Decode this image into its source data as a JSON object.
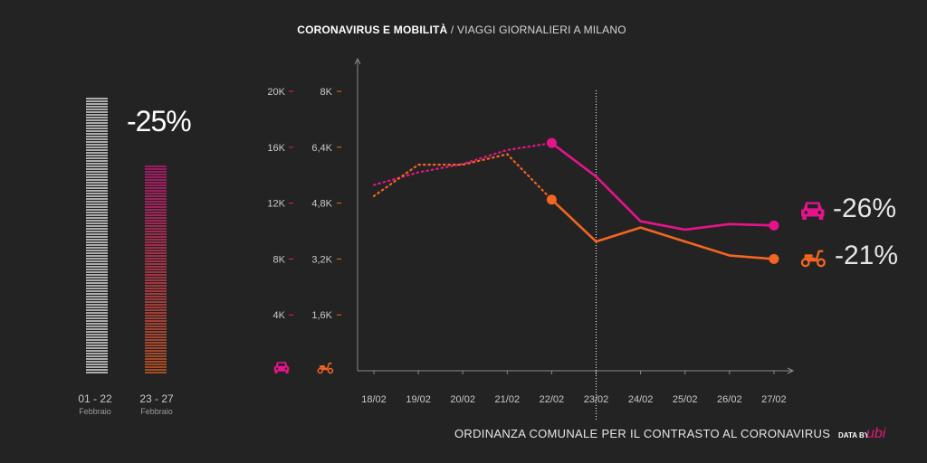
{
  "header": {
    "title_bold": "CORONAVIRUS E MOBILITÀ",
    "title_rest": " / VIAGGI GIORNALIERI A MILANO"
  },
  "summary": {
    "pct_change": "-25%",
    "period1": {
      "label": "01 - 22",
      "sub": "Febbraio"
    },
    "period2": {
      "label": "23 - 27",
      "sub": "Febbraio"
    },
    "ratio": 0.75
  },
  "legend": {
    "car": {
      "value": "-26%",
      "icon": "car-icon",
      "color": "#e6148c"
    },
    "scooter": {
      "value": "-21%",
      "icon": "scooter-icon",
      "color": "#f26522"
    }
  },
  "footer": {
    "annotation": "ORDINANZA COMUNALE PER IL CONTRASTO AL CORONAVIRUS",
    "data_by": "DATA BY",
    "brand": "ubi"
  },
  "chart_data": {
    "type": "line",
    "categories": [
      "18/02",
      "19/02",
      "20/02",
      "21/02",
      "22/02",
      "23/02",
      "24/02",
      "25/02",
      "26/02",
      "27/02"
    ],
    "y_left": {
      "ticks": [
        "20K",
        "16K",
        "12K",
        "8K",
        "4K"
      ],
      "range": [
        0,
        20000
      ]
    },
    "y_right": {
      "ticks": [
        "8K",
        "6,4K",
        "4,8K",
        "3,2K",
        "1,6K"
      ],
      "range": [
        0,
        8000
      ]
    },
    "annotation_date": "23/02",
    "series": [
      {
        "key": "car",
        "icon": "car-icon",
        "color": "#e6148c",
        "axis": "left",
        "values": [
          13300,
          14200,
          14800,
          15800,
          16300,
          13900,
          10700,
          10100,
          10500,
          10400
        ]
      },
      {
        "key": "scooter",
        "icon": "scooter-icon",
        "color": "#f26522",
        "axis": "right",
        "values": [
          5000,
          5900,
          5900,
          6200,
          4900,
          3700,
          4100,
          3700,
          3300,
          3200
        ]
      }
    ]
  }
}
